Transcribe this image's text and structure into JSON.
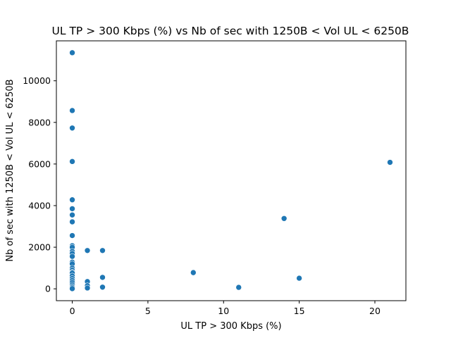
{
  "chart_data": {
    "type": "scatter",
    "title": "UL TP > 300 Kbps (%) vs Nb of sec with 1250B < Vol UL < 6250B",
    "xlabel": "UL TP > 300 Kbps (%)",
    "ylabel": "Nb of sec with 1250B < Vol UL < 6250B",
    "xlim": [
      -1.05,
      22.05
    ],
    "ylim": [
      -570,
      11920
    ],
    "xticks": [
      0,
      5,
      10,
      15,
      20
    ],
    "yticks": [
      0,
      2000,
      4000,
      6000,
      8000,
      10000
    ],
    "grid": false,
    "marker_color": "#1f77b4",
    "points": [
      {
        "x": 0,
        "y": 11350
      },
      {
        "x": 0,
        "y": 8570
      },
      {
        "x": 0,
        "y": 7730
      },
      {
        "x": 0,
        "y": 6120
      },
      {
        "x": 0,
        "y": 4280
      },
      {
        "x": 0,
        "y": 3850
      },
      {
        "x": 0,
        "y": 3550
      },
      {
        "x": 0,
        "y": 3220
      },
      {
        "x": 0,
        "y": 2560
      },
      {
        "x": 0,
        "y": 2070
      },
      {
        "x": 0,
        "y": 2000
      },
      {
        "x": 0,
        "y": 1800
      },
      {
        "x": 0,
        "y": 1700
      },
      {
        "x": 0,
        "y": 1560
      },
      {
        "x": 0,
        "y": 1280
      },
      {
        "x": 0,
        "y": 1200
      },
      {
        "x": 0,
        "y": 1000
      },
      {
        "x": 0,
        "y": 900
      },
      {
        "x": 0,
        "y": 800
      },
      {
        "x": 0,
        "y": 760
      },
      {
        "x": 0,
        "y": 620
      },
      {
        "x": 0,
        "y": 500
      },
      {
        "x": 0,
        "y": 400
      },
      {
        "x": 0,
        "y": 300
      },
      {
        "x": 0,
        "y": 200
      },
      {
        "x": 0,
        "y": 120
      },
      {
        "x": 0,
        "y": 60
      },
      {
        "x": 0,
        "y": 10
      },
      {
        "x": 1,
        "y": 1840
      },
      {
        "x": 1,
        "y": 350
      },
      {
        "x": 1,
        "y": 150
      },
      {
        "x": 1,
        "y": 40
      },
      {
        "x": 2,
        "y": 1840
      },
      {
        "x": 2,
        "y": 550
      },
      {
        "x": 2,
        "y": 80
      },
      {
        "x": 8,
        "y": 780
      },
      {
        "x": 11,
        "y": 70
      },
      {
        "x": 14,
        "y": 3380
      },
      {
        "x": 15,
        "y": 510
      },
      {
        "x": 21,
        "y": 6080
      }
    ]
  }
}
